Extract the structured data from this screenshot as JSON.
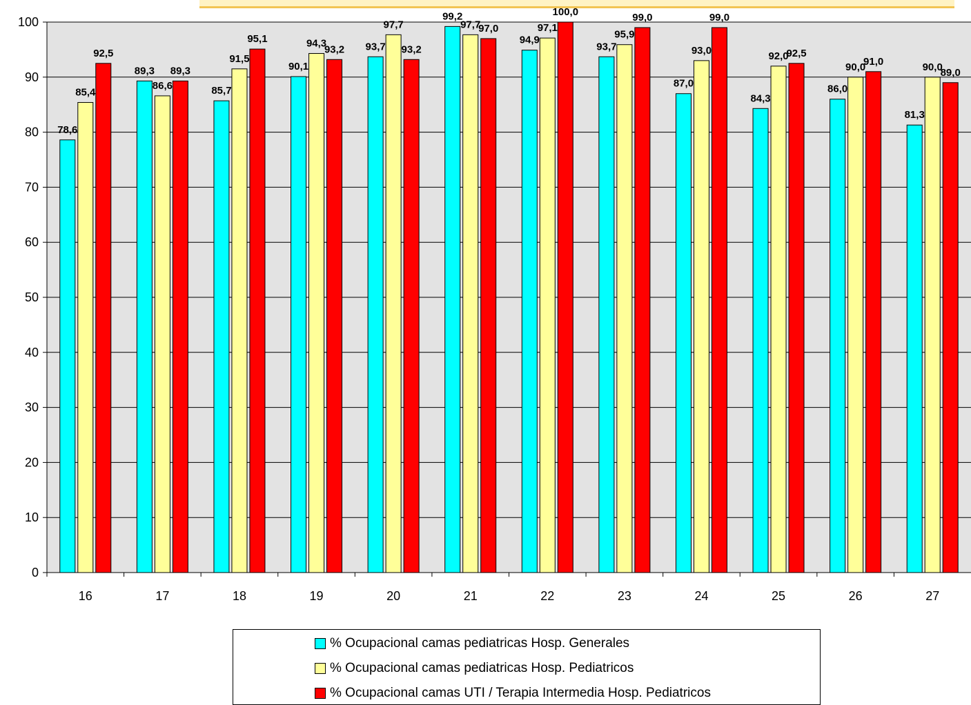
{
  "chart_data": {
    "type": "bar",
    "categories": [
      "16",
      "17",
      "18",
      "19",
      "20",
      "21",
      "22",
      "23",
      "24",
      "25",
      "26",
      "27"
    ],
    "series": [
      {
        "name": "% Ocupacional camas pediatricas Hosp. Generales",
        "color": "#00ffff",
        "values": [
          78.6,
          89.3,
          85.7,
          90.1,
          93.7,
          99.2,
          94.9,
          93.7,
          87.0,
          84.3,
          86.0,
          81.3
        ],
        "labels": [
          "78,6",
          "89,3",
          "85,7",
          "90,1",
          "93,7",
          "99,2",
          "94,9",
          "93,7",
          "87,0",
          "84,3",
          "86,0",
          "81,3"
        ]
      },
      {
        "name": "% Ocupacional camas pediatricas Hosp. Pediatricos",
        "color": "#ffff99",
        "values": [
          85.4,
          86.6,
          91.5,
          94.3,
          97.7,
          97.7,
          97.1,
          95.9,
          93.0,
          92.0,
          90.0,
          90.0
        ],
        "labels": [
          "85,4",
          "86,6",
          "91,5",
          "94,3",
          "97,7",
          "97,7",
          "97,1",
          "95,9",
          "93,0",
          "92,0",
          "90,0",
          "90,0"
        ]
      },
      {
        "name": "% Ocupacional camas UTI / Terapia Intermedia Hosp. Pediatricos",
        "color": "#ff0000",
        "values": [
          92.5,
          89.3,
          95.1,
          93.2,
          93.2,
          97.0,
          100.0,
          99.0,
          99.0,
          92.5,
          91.0,
          89.0
        ],
        "labels": [
          "92,5",
          "89,3",
          "95,1",
          "93,2",
          "93,2",
          "97,0",
          "100,0",
          "99,0",
          "99,0",
          "92,5",
          "91,0",
          "89,0"
        ]
      }
    ],
    "yticks": [
      "0",
      "10",
      "20",
      "30",
      "40",
      "50",
      "60",
      "70",
      "80",
      "90",
      "100"
    ],
    "ylim": [
      0,
      100
    ],
    "grid": true,
    "plot_background": "#e3e3e3",
    "legend_position": "bottom"
  }
}
